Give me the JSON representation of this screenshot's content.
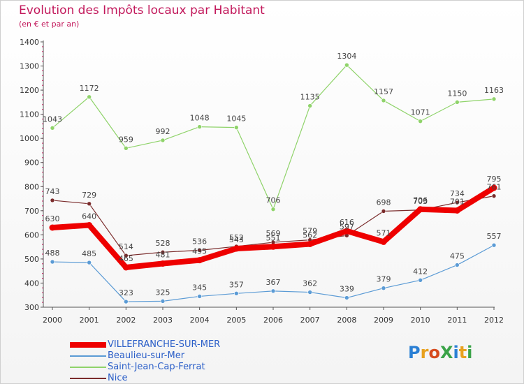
{
  "title": "Evolution des Impôts locaux par Habitant",
  "subtitle": "(en € et par an)",
  "logo": {
    "text": "ProXiti",
    "colors": [
      "#2a7fd4",
      "#e8a11e",
      "#d64a1e",
      "#3aa348",
      "#2a7fd4",
      "#e8a11e",
      "#3aa348"
    ]
  },
  "chart_data": {
    "type": "line",
    "x": [
      "2000",
      "2001",
      "2002",
      "2003",
      "2004",
      "2005",
      "2006",
      "2007",
      "2008",
      "2009",
      "2010",
      "2011",
      "2012"
    ],
    "ylim": [
      300,
      1400
    ],
    "yticks": [
      300,
      400,
      500,
      600,
      700,
      800,
      900,
      1000,
      1100,
      1200,
      1300,
      1400
    ],
    "grid": false,
    "legend_position": "bottom-left",
    "series": [
      {
        "name": "Beaulieu-sur-Mer",
        "color": "#5b9bd5",
        "width": 1.2,
        "values": [
          488,
          485,
          323,
          325,
          345,
          357,
          367,
          362,
          339,
          379,
          412,
          475,
          557
        ],
        "labels": [
          "488",
          "485",
          "323",
          "325",
          "345",
          "357",
          "367",
          "362",
          "339",
          "379",
          "412",
          "475",
          "557"
        ]
      },
      {
        "name": "Saint-Jean-Cap-Ferrat",
        "color": "#8fd36a",
        "width": 1.2,
        "values": [
          1043,
          1172,
          959,
          992,
          1048,
          1045,
          706,
          1135,
          1304,
          1157,
          1071,
          1150,
          1163
        ],
        "labels": [
          "1043",
          "1172",
          "959",
          "992",
          "1048",
          "1045",
          "706",
          "1135",
          "1304",
          "1157",
          "1071",
          "1150",
          "1163"
        ]
      },
      {
        "name": "Nice",
        "color": "#7a2b2b",
        "width": 1.2,
        "values": [
          743,
          729,
          514,
          528,
          536,
          552,
          569,
          579,
          597,
          698,
          703,
          734,
          761
        ],
        "labels": [
          "743",
          "729",
          "514",
          "528",
          "536",
          "552",
          "569",
          "579",
          "597",
          "698",
          "703",
          "734",
          "761"
        ]
      },
      {
        "name": "VILLEFRANCHE-SUR-MER",
        "color": "#ee0000",
        "width": 8,
        "values": [
          630,
          640,
          465,
          481,
          495,
          543,
          551,
          562,
          616,
          571,
          706,
          701,
          795
        ],
        "labels": [
          "630",
          "640",
          "465",
          "481",
          "495",
          "543",
          "551",
          "562",
          "616",
          "571",
          "706",
          "701",
          "795"
        ]
      }
    ],
    "legend_order": [
      "VILLEFRANCHE-SUR-MER",
      "Beaulieu-sur-Mer",
      "Saint-Jean-Cap-Ferrat",
      "Nice"
    ]
  }
}
